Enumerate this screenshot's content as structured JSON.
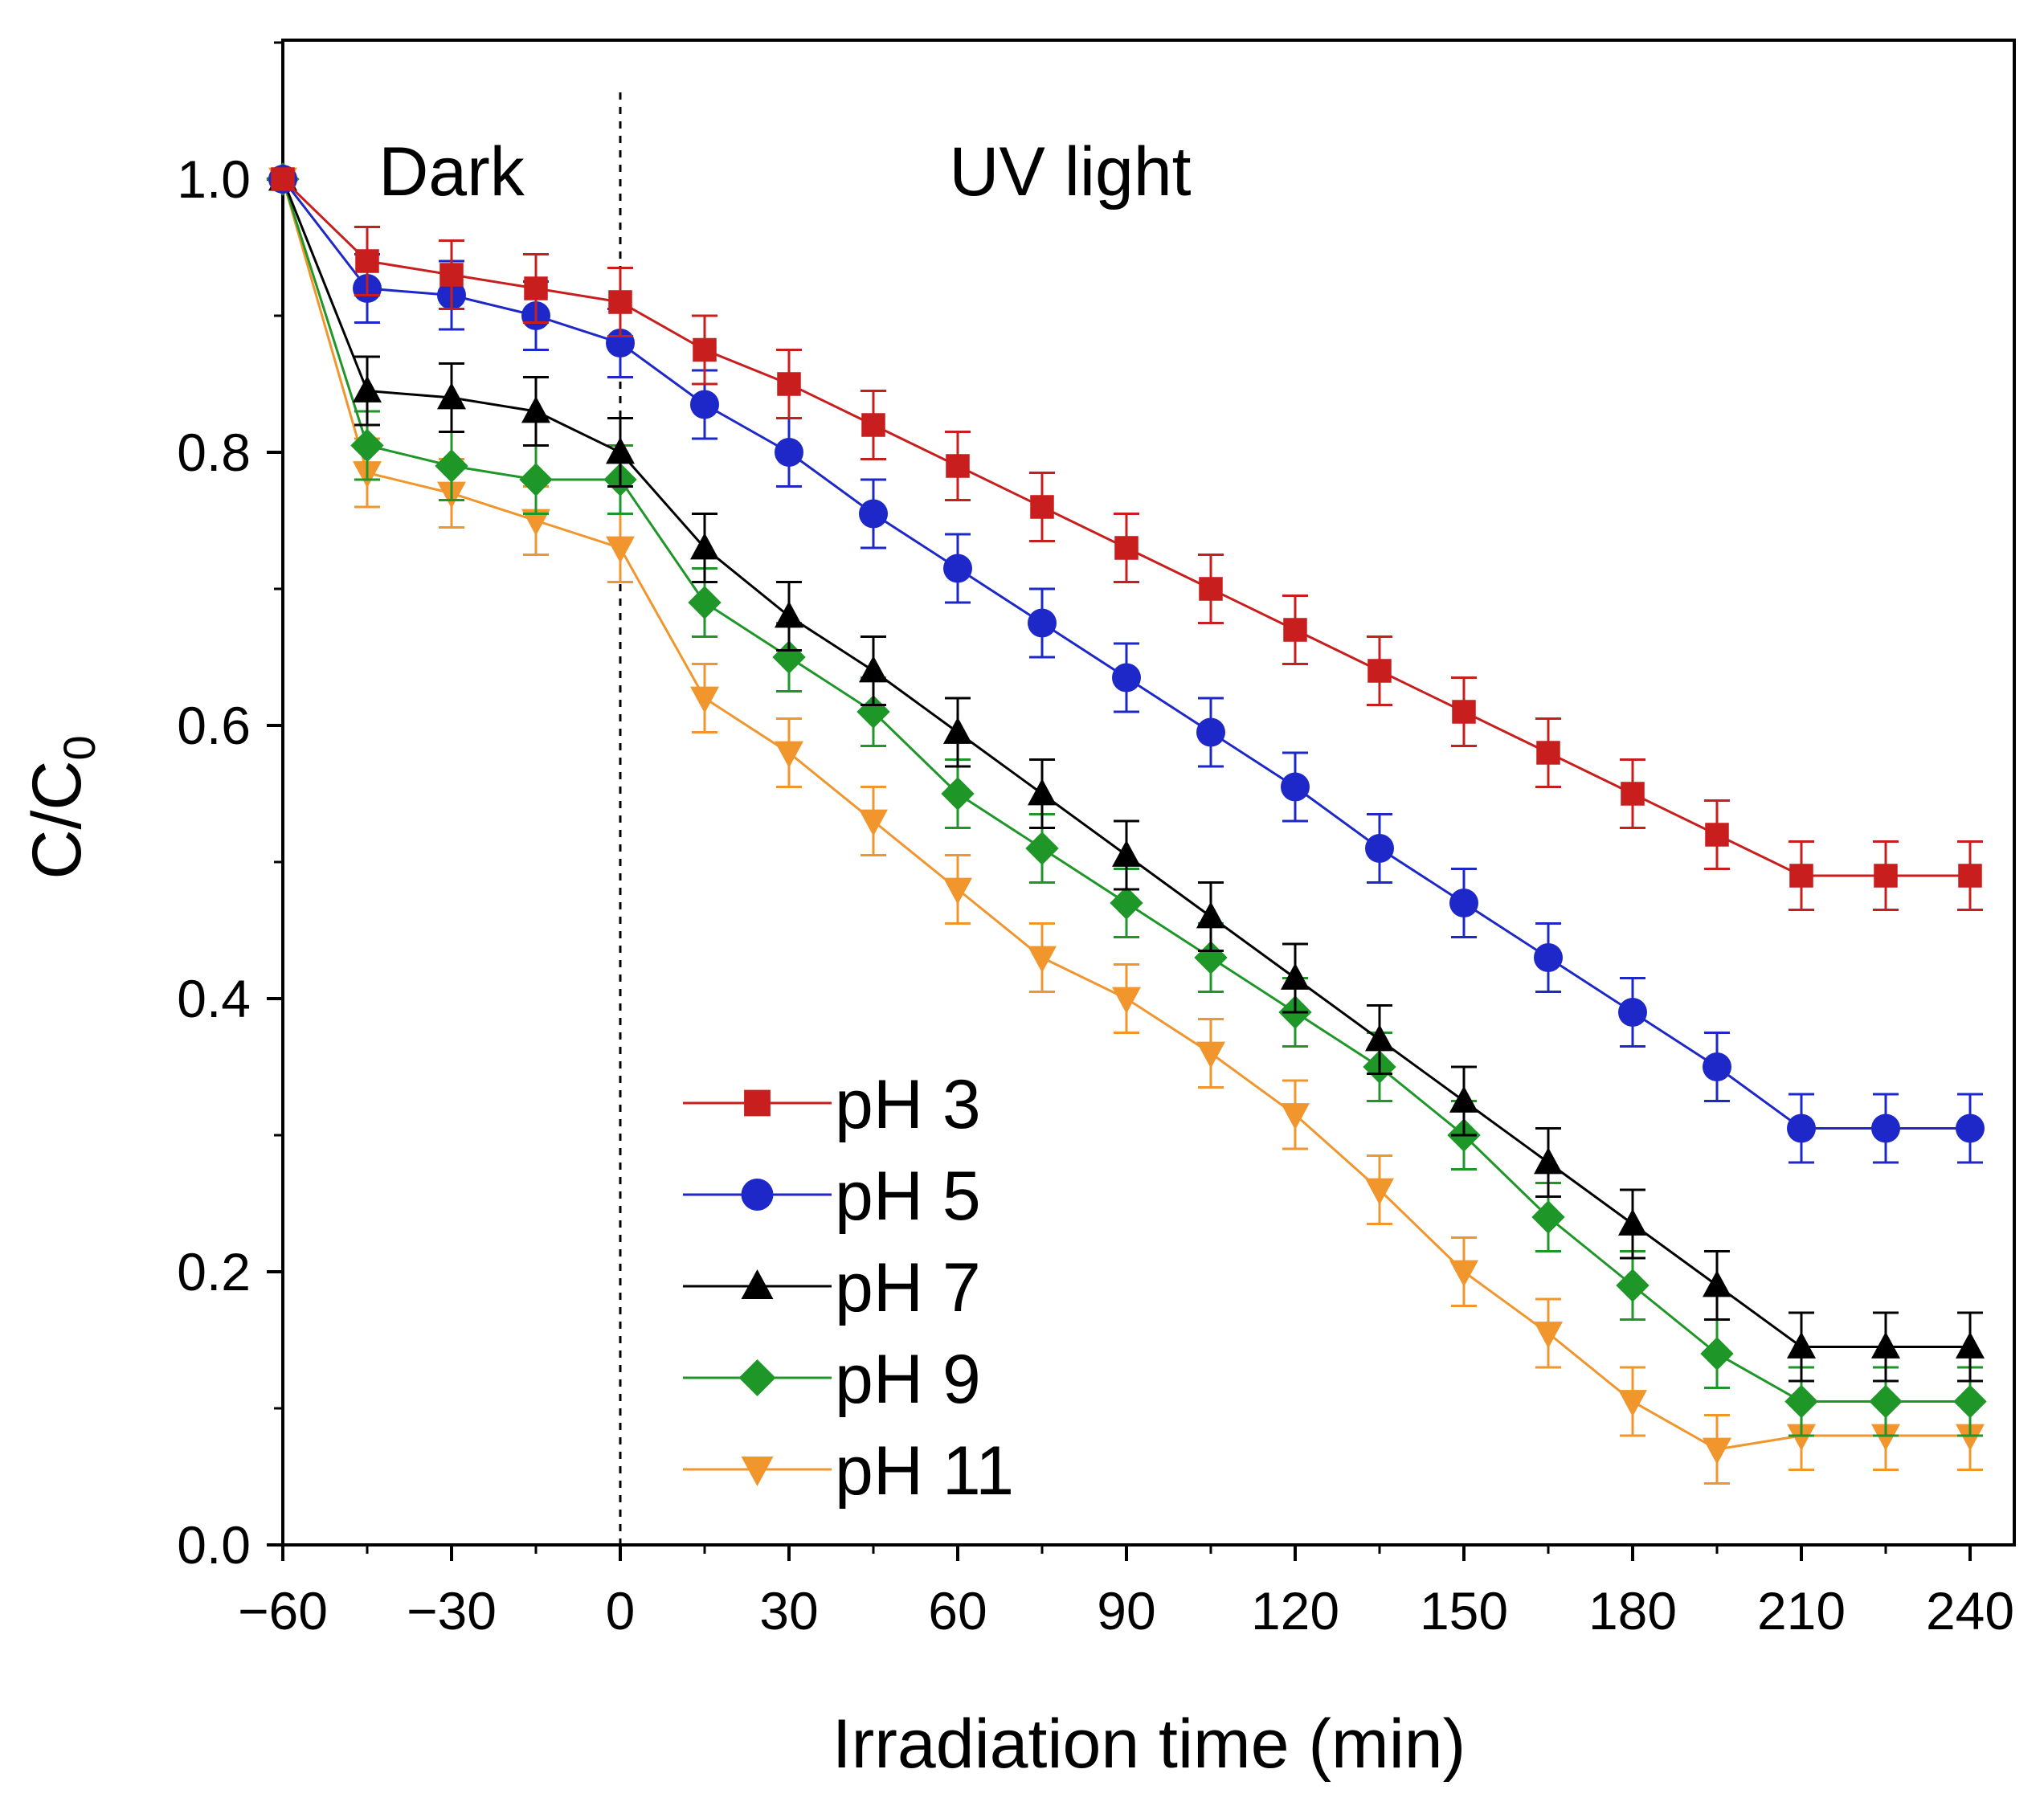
{
  "chart_data": {
    "type": "line",
    "title": "",
    "xlabel": "Irradiation time (min)",
    "ylabel": "C/C",
    "ylabel_subscript": "0",
    "xlim": [
      -60,
      240
    ],
    "ylim": [
      0.0,
      1.1
    ],
    "x_ticks": [
      -60,
      -30,
      0,
      30,
      60,
      90,
      120,
      150,
      180,
      210,
      240
    ],
    "x_tick_labels": [
      "−60",
      "−30",
      "0",
      "30",
      "60",
      "90",
      "120",
      "150",
      "180",
      "210",
      "240"
    ],
    "y_ticks": [
      0.0,
      0.2,
      0.4,
      0.6,
      0.8,
      1.0
    ],
    "y_tick_labels": [
      "0.0",
      "0.2",
      "0.4",
      "0.6",
      "0.8",
      "1.0"
    ],
    "annotations": [
      {
        "text": "Dark",
        "x": -30,
        "y": 1.0
      },
      {
        "text": "UV light",
        "x": 80,
        "y": 1.0
      }
    ],
    "divider_x": 0,
    "legend_position": "bottom-center",
    "x": [
      -60,
      -45,
      -30,
      -15,
      0,
      15,
      30,
      45,
      60,
      75,
      90,
      105,
      120,
      135,
      150,
      165,
      180,
      195,
      210,
      225,
      240
    ],
    "series": [
      {
        "name": "pH 3",
        "color": "#c81e1e",
        "marker": "square",
        "values": [
          1.0,
          0.94,
          0.93,
          0.92,
          0.91,
          0.875,
          0.85,
          0.82,
          0.79,
          0.76,
          0.73,
          0.7,
          0.67,
          0.64,
          0.61,
          0.58,
          0.55,
          0.52,
          0.49,
          0.49,
          0.49
        ],
        "errors": [
          0.0,
          0.025,
          0.025,
          0.025,
          0.025,
          0.025,
          0.025,
          0.025,
          0.025,
          0.025,
          0.025,
          0.025,
          0.025,
          0.025,
          0.025,
          0.025,
          0.025,
          0.025,
          0.025,
          0.025,
          0.025
        ]
      },
      {
        "name": "pH 5",
        "color": "#1e28c8",
        "marker": "circle",
        "values": [
          1.0,
          0.92,
          0.915,
          0.9,
          0.88,
          0.835,
          0.8,
          0.755,
          0.715,
          0.675,
          0.635,
          0.595,
          0.555,
          0.51,
          0.47,
          0.43,
          0.39,
          0.35,
          0.305,
          0.305,
          0.305
        ],
        "errors": [
          0.0,
          0.025,
          0.025,
          0.025,
          0.025,
          0.025,
          0.025,
          0.025,
          0.025,
          0.025,
          0.025,
          0.025,
          0.025,
          0.025,
          0.025,
          0.025,
          0.025,
          0.025,
          0.025,
          0.025,
          0.025
        ]
      },
      {
        "name": "pH 7",
        "color": "#000000",
        "marker": "triangle-up",
        "values": [
          1.0,
          0.845,
          0.84,
          0.83,
          0.8,
          0.73,
          0.68,
          0.64,
          0.595,
          0.55,
          0.505,
          0.46,
          0.415,
          0.37,
          0.325,
          0.28,
          0.235,
          0.19,
          0.145,
          0.145,
          0.145
        ],
        "errors": [
          0.0,
          0.025,
          0.025,
          0.025,
          0.025,
          0.025,
          0.025,
          0.025,
          0.025,
          0.025,
          0.025,
          0.025,
          0.025,
          0.025,
          0.025,
          0.025,
          0.025,
          0.025,
          0.025,
          0.025,
          0.025
        ]
      },
      {
        "name": "pH 9",
        "color": "#1e9628",
        "marker": "diamond",
        "values": [
          1.0,
          0.805,
          0.79,
          0.78,
          0.78,
          0.69,
          0.65,
          0.61,
          0.55,
          0.51,
          0.47,
          0.43,
          0.39,
          0.35,
          0.3,
          0.24,
          0.19,
          0.14,
          0.105,
          0.105,
          0.105
        ],
        "errors": [
          0.0,
          0.025,
          0.025,
          0.025,
          0.025,
          0.025,
          0.025,
          0.025,
          0.025,
          0.025,
          0.025,
          0.025,
          0.025,
          0.025,
          0.025,
          0.025,
          0.025,
          0.025,
          0.025,
          0.025,
          0.025
        ]
      },
      {
        "name": "pH 11",
        "color": "#f0962d",
        "marker": "triangle-down",
        "values": [
          1.0,
          0.785,
          0.77,
          0.75,
          0.73,
          0.62,
          0.58,
          0.53,
          0.48,
          0.43,
          0.4,
          0.36,
          0.315,
          0.26,
          0.2,
          0.155,
          0.105,
          0.07,
          0.08,
          0.08,
          0.08
        ],
        "errors": [
          0.0,
          0.025,
          0.025,
          0.025,
          0.025,
          0.025,
          0.025,
          0.025,
          0.025,
          0.025,
          0.025,
          0.025,
          0.025,
          0.025,
          0.025,
          0.025,
          0.025,
          0.025,
          0.025,
          0.025,
          0.025
        ]
      }
    ]
  }
}
